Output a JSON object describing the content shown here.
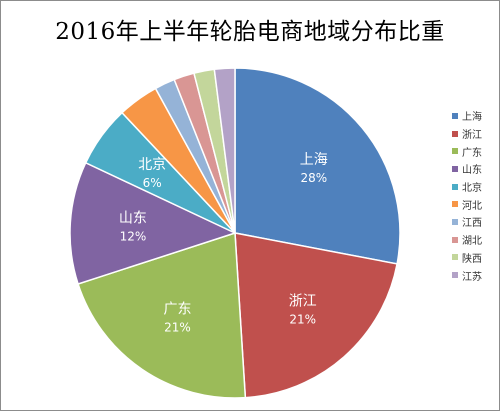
{
  "chart_data": {
    "type": "pie",
    "title": "2016年上半年轮胎电商地域分布比重",
    "legend_position": "right",
    "slices": [
      {
        "label": "上海",
        "value": 28,
        "value_label": "28%",
        "color": "#4f81bd",
        "show_label": true
      },
      {
        "label": "浙江",
        "value": 21,
        "value_label": "21%",
        "color": "#c0504d",
        "show_label": true
      },
      {
        "label": "广东",
        "value": 21,
        "value_label": "21%",
        "color": "#9bbb59",
        "show_label": true
      },
      {
        "label": "山东",
        "value": 12,
        "value_label": "12%",
        "color": "#8064a2",
        "show_label": true
      },
      {
        "label": "北京",
        "value": 6,
        "value_label": "6%",
        "color": "#4bacc6",
        "show_label": true
      },
      {
        "label": "河北",
        "value": 4,
        "value_label": "",
        "color": "#f79646",
        "show_label": false
      },
      {
        "label": "江西",
        "value": 2,
        "value_label": "",
        "color": "#95b3d7",
        "show_label": false
      },
      {
        "label": "湖北",
        "value": 2,
        "value_label": "",
        "color": "#d99694",
        "show_label": false
      },
      {
        "label": "陕西",
        "value": 2,
        "value_label": "",
        "color": "#c3d69b",
        "show_label": false
      },
      {
        "label": "江苏",
        "value": 2,
        "value_label": "",
        "color": "#b3a2c7",
        "show_label": false
      }
    ]
  }
}
